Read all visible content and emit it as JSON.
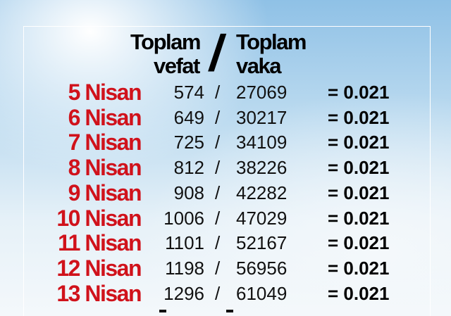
{
  "header": {
    "left": [
      "Toplam",
      "vefat"
    ],
    "slash": "/",
    "right": [
      "Toplam",
      "vaka"
    ]
  },
  "separator": "/",
  "rows": [
    {
      "date": "5 Nisan",
      "deaths": 574,
      "cases": 27069,
      "ratio": "= 0.021"
    },
    {
      "date": "6 Nisan",
      "deaths": 649,
      "cases": 30217,
      "ratio": "= 0.021"
    },
    {
      "date": "7 Nisan",
      "deaths": 725,
      "cases": 34109,
      "ratio": "= 0.021"
    },
    {
      "date": "8 Nisan",
      "deaths": 812,
      "cases": 38226,
      "ratio": "= 0.021"
    },
    {
      "date": "9 Nisan",
      "deaths": 908,
      "cases": 42282,
      "ratio": "= 0.021"
    },
    {
      "date": "10 Nisan",
      "deaths": 1006,
      "cases": 47029,
      "ratio": "= 0.021"
    },
    {
      "date": "11 Nisan",
      "deaths": 1101,
      "cases": 52167,
      "ratio": "= 0.021"
    },
    {
      "date": "12 Nisan",
      "deaths": 1198,
      "cases": 56956,
      "ratio": "= 0.021"
    },
    {
      "date": "13 Nisan",
      "deaths": 1296,
      "cases": 61049,
      "ratio": "= 0.021"
    }
  ]
}
